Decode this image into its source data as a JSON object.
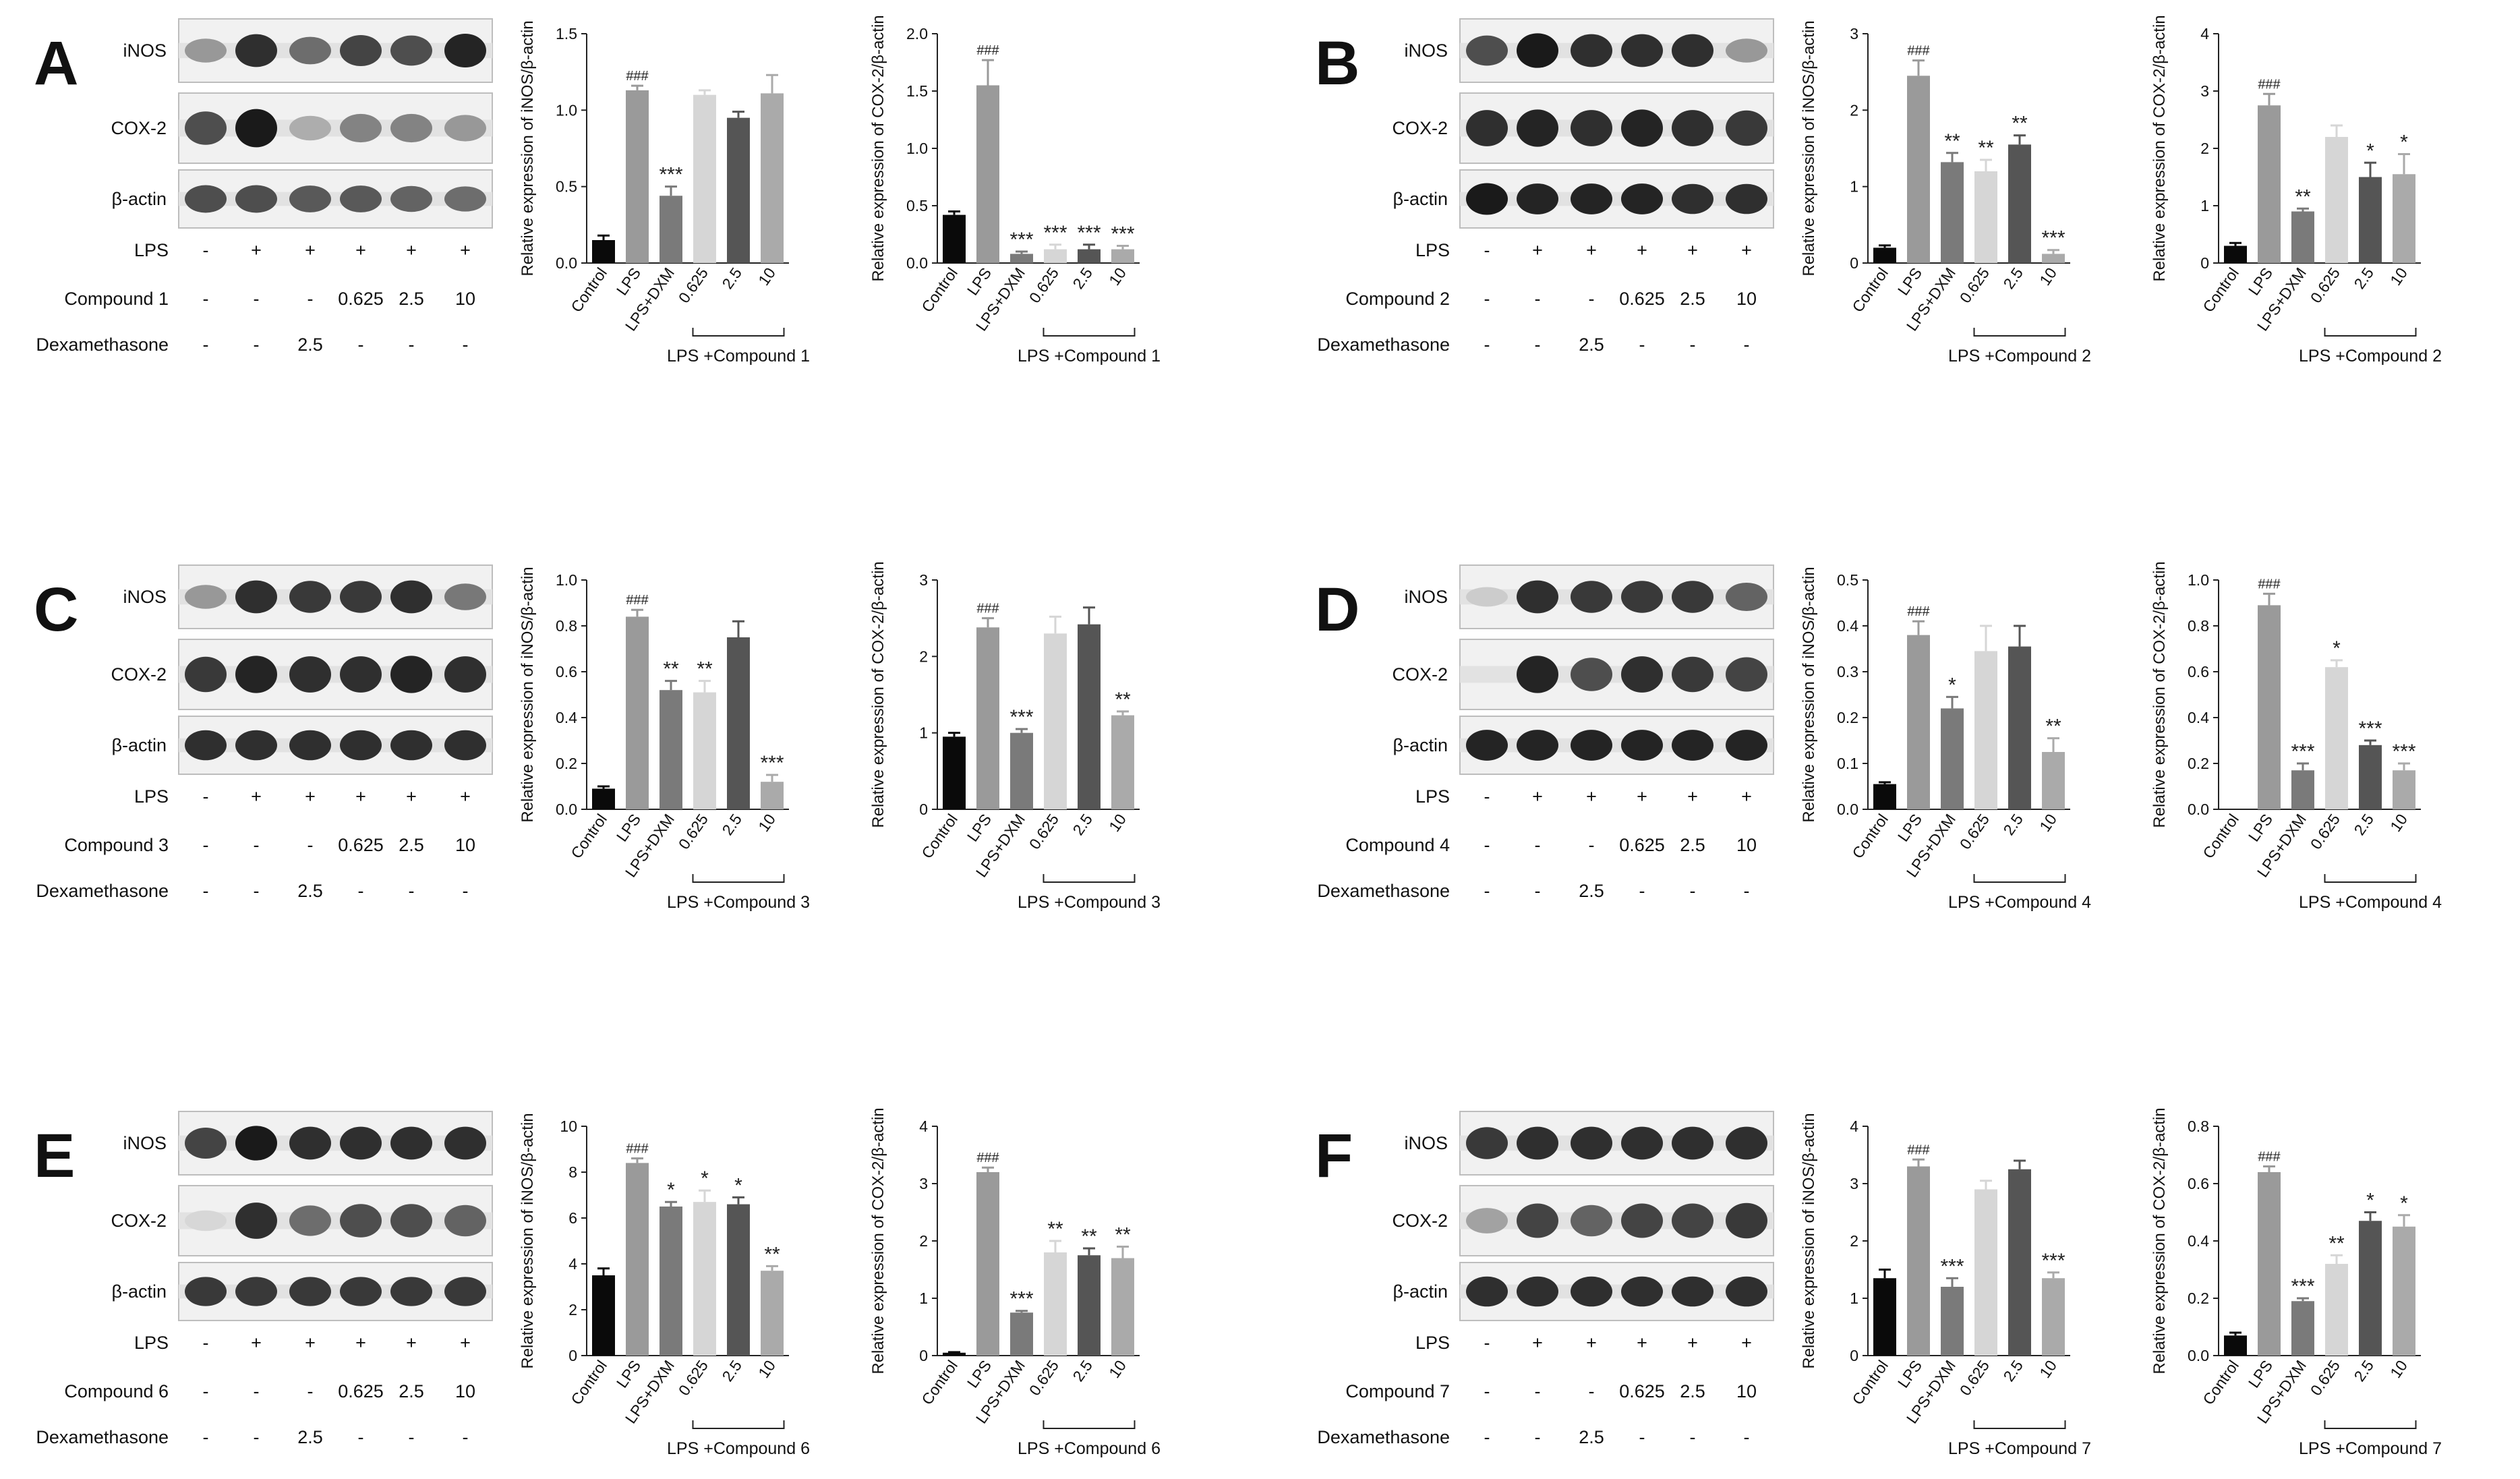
{
  "figure": {
    "row_labels": {
      "lps": "LPS",
      "dex": "Dexamethasone"
    },
    "blot_labels": [
      "iNOS",
      "COX-2",
      "β-actin"
    ],
    "categories": [
      "Control",
      "LPS",
      "LPS+DXM",
      "0.625",
      "2.5",
      "10"
    ],
    "group_prefix": "LPS +",
    "lps_row": [
      "-",
      "+",
      "+",
      "+",
      "+",
      "+"
    ],
    "compound_row": [
      "-",
      "-",
      "-",
      "0.625",
      "2.5",
      "10"
    ],
    "dex_row": [
      "-",
      "-",
      "2.5",
      "-",
      "-",
      "-"
    ],
    "bar_colors": [
      "#0a0a0a",
      "#9a9a9a",
      "#7a7a7a",
      "#d6d6d6",
      "#555555",
      "#aaaaaa"
    ]
  },
  "panels": [
    {
      "letter": "A",
      "compound": "Compound 1",
      "blots": [
        [
          0.35,
          0.85,
          0.55,
          0.75,
          0.7,
          0.9
        ],
        [
          0.7,
          0.95,
          0.25,
          0.45,
          0.45,
          0.35
        ],
        [
          0.7,
          0.7,
          0.65,
          0.65,
          0.6,
          0.55
        ]
      ]
    },
    {
      "letter": "B",
      "compound": "Compound 2",
      "blots": [
        [
          0.7,
          0.95,
          0.85,
          0.85,
          0.85,
          0.35
        ],
        [
          0.85,
          0.9,
          0.85,
          0.9,
          0.85,
          0.8
        ],
        [
          0.95,
          0.9,
          0.9,
          0.9,
          0.85,
          0.85
        ]
      ]
    },
    {
      "letter": "C",
      "compound": "Compound 3",
      "blots": [
        [
          0.35,
          0.85,
          0.8,
          0.8,
          0.85,
          0.5
        ],
        [
          0.8,
          0.9,
          0.85,
          0.85,
          0.9,
          0.85
        ],
        [
          0.85,
          0.85,
          0.85,
          0.85,
          0.85,
          0.85
        ]
      ]
    },
    {
      "letter": "D",
      "compound": "Compound 4",
      "blots": [
        [
          0.1,
          0.85,
          0.8,
          0.8,
          0.8,
          0.6
        ],
        [
          0.0,
          0.9,
          0.7,
          0.85,
          0.8,
          0.75
        ],
        [
          0.9,
          0.9,
          0.9,
          0.9,
          0.9,
          0.9
        ]
      ]
    },
    {
      "letter": "E",
      "compound": "Compound 6",
      "blots": [
        [
          0.75,
          0.95,
          0.85,
          0.85,
          0.85,
          0.85
        ],
        [
          0.05,
          0.85,
          0.55,
          0.7,
          0.7,
          0.6
        ],
        [
          0.8,
          0.8,
          0.8,
          0.8,
          0.8,
          0.8
        ]
      ]
    },
    {
      "letter": "F",
      "compound": "Compound 7",
      "blots": [
        [
          0.8,
          0.85,
          0.85,
          0.85,
          0.85,
          0.85
        ],
        [
          0.3,
          0.75,
          0.6,
          0.75,
          0.75,
          0.8
        ],
        [
          0.85,
          0.85,
          0.85,
          0.85,
          0.85,
          0.85
        ]
      ]
    }
  ],
  "chart_data": [
    {
      "panel": "A",
      "type": "bar",
      "ylabel": "Relative expression of iNOS/β-actin",
      "group_label": "LPS +Compound 1",
      "ylim": [
        0,
        1.5
      ],
      "yticks": [
        "0.0",
        "0.5",
        "1.0",
        "1.5"
      ],
      "values": [
        0.15,
        1.13,
        0.44,
        1.1,
        0.95,
        1.11
      ],
      "errors": [
        0.03,
        0.03,
        0.06,
        0.03,
        0.04,
        0.12
      ],
      "marks": [
        "",
        "###",
        "***",
        "",
        "",
        ""
      ]
    },
    {
      "panel": "A",
      "type": "bar",
      "ylabel": "Relative expression of COX-2/β-actin",
      "group_label": "LPS +Compound 1",
      "ylim": [
        0,
        2.0
      ],
      "yticks": [
        "0.0",
        "0.5",
        "1.0",
        "1.5",
        "2.0"
      ],
      "values": [
        0.42,
        1.55,
        0.08,
        0.12,
        0.12,
        0.12
      ],
      "errors": [
        0.03,
        0.22,
        0.02,
        0.04,
        0.04,
        0.03
      ],
      "marks": [
        "",
        "###",
        "***",
        "***",
        "***",
        "***"
      ]
    },
    {
      "panel": "B",
      "type": "bar",
      "ylabel": "Relative expression of iNOS/β-actin",
      "group_label": "LPS +Compound 2",
      "ylim": [
        0,
        3
      ],
      "yticks": [
        "0",
        "1",
        "2",
        "3"
      ],
      "values": [
        0.2,
        2.45,
        1.32,
        1.2,
        1.55,
        0.12
      ],
      "errors": [
        0.03,
        0.2,
        0.12,
        0.15,
        0.12,
        0.05
      ],
      "marks": [
        "",
        "###",
        "**",
        "**",
        "**",
        "***"
      ]
    },
    {
      "panel": "B",
      "type": "bar",
      "ylabel": "Relative expression of COX-2/β-actin",
      "group_label": "LPS +Compound 2",
      "ylim": [
        0,
        4
      ],
      "yticks": [
        "0",
        "1",
        "2",
        "3",
        "4"
      ],
      "values": [
        0.3,
        2.75,
        0.9,
        2.2,
        1.5,
        1.55
      ],
      "errors": [
        0.05,
        0.2,
        0.05,
        0.2,
        0.25,
        0.35
      ],
      "marks": [
        "",
        "###",
        "**",
        "",
        "*",
        "*"
      ]
    },
    {
      "panel": "C",
      "type": "bar",
      "ylabel": "Relative expression of iNOS/β-actin",
      "group_label": "LPS +Compound 3",
      "ylim": [
        0,
        1.0
      ],
      "yticks": [
        "0.0",
        "0.2",
        "0.4",
        "0.6",
        "0.8",
        "1.0"
      ],
      "values": [
        0.09,
        0.84,
        0.52,
        0.51,
        0.75,
        0.12
      ],
      "errors": [
        0.01,
        0.03,
        0.04,
        0.05,
        0.07,
        0.03
      ],
      "marks": [
        "",
        "###",
        "**",
        "**",
        "",
        "***"
      ]
    },
    {
      "panel": "C",
      "type": "bar",
      "ylabel": "Relative expression of COX-2/β-actin",
      "group_label": "LPS +Compound 3",
      "ylim": [
        0,
        3
      ],
      "yticks": [
        "0",
        "1",
        "2",
        "3"
      ],
      "values": [
        0.95,
        2.38,
        1.0,
        2.3,
        2.42,
        1.23
      ],
      "errors": [
        0.05,
        0.12,
        0.05,
        0.22,
        0.22,
        0.05
      ],
      "marks": [
        "",
        "###",
        "***",
        "",
        "",
        "**"
      ]
    },
    {
      "panel": "D",
      "type": "bar",
      "ylabel": "Relative expression of iNOS/β-actin",
      "group_label": "LPS +Compound 4",
      "ylim": [
        0,
        0.5
      ],
      "yticks": [
        "0.0",
        "0.1",
        "0.2",
        "0.3",
        "0.4",
        "0.5"
      ],
      "values": [
        0.055,
        0.38,
        0.22,
        0.345,
        0.355,
        0.125
      ],
      "errors": [
        0.004,
        0.03,
        0.025,
        0.055,
        0.045,
        0.03
      ],
      "marks": [
        "",
        "###",
        "*",
        "",
        "",
        "**"
      ]
    },
    {
      "panel": "D",
      "type": "bar",
      "ylabel": "Relative expression of COX-2/β-actin",
      "group_label": "LPS +Compound 4",
      "ylim": [
        0,
        1.0
      ],
      "yticks": [
        "0.0",
        "0.2",
        "0.4",
        "0.6",
        "0.8",
        "1.0"
      ],
      "values": [
        0.0,
        0.89,
        0.17,
        0.62,
        0.28,
        0.17
      ],
      "errors": [
        0.0,
        0.05,
        0.03,
        0.03,
        0.02,
        0.03
      ],
      "marks": [
        "",
        "###",
        "***",
        "*",
        "***",
        "***"
      ]
    },
    {
      "panel": "E",
      "type": "bar",
      "ylabel": "Relative expression of iNOS/β-actin",
      "group_label": "LPS +Compound 6",
      "ylim": [
        0,
        10
      ],
      "yticks": [
        "0",
        "2",
        "4",
        "6",
        "8",
        "10"
      ],
      "values": [
        3.5,
        8.4,
        6.5,
        6.7,
        6.6,
        3.7
      ],
      "errors": [
        0.3,
        0.2,
        0.2,
        0.5,
        0.3,
        0.2
      ],
      "marks": [
        "",
        "###",
        "*",
        "*",
        "*",
        "**"
      ]
    },
    {
      "panel": "E",
      "type": "bar",
      "ylabel": "Relative expression of COX-2/β-actin",
      "group_label": "LPS +Compound 6",
      "ylim": [
        0,
        4
      ],
      "yticks": [
        "0",
        "1",
        "2",
        "3",
        "4"
      ],
      "values": [
        0.05,
        3.2,
        0.75,
        1.8,
        1.75,
        1.7
      ],
      "errors": [
        0.01,
        0.08,
        0.03,
        0.2,
        0.12,
        0.2
      ],
      "marks": [
        "",
        "###",
        "***",
        "**",
        "**",
        "**"
      ]
    },
    {
      "panel": "F",
      "type": "bar",
      "ylabel": "Relative expression of iNOS/β-actin",
      "group_label": "LPS +Compound 7",
      "ylim": [
        0,
        4
      ],
      "yticks": [
        "0",
        "1",
        "2",
        "3",
        "4"
      ],
      "values": [
        1.35,
        3.3,
        1.2,
        2.9,
        3.25,
        1.35
      ],
      "errors": [
        0.15,
        0.12,
        0.15,
        0.15,
        0.15,
        0.1
      ],
      "marks": [
        "",
        "###",
        "***",
        "",
        "",
        "***"
      ]
    },
    {
      "panel": "F",
      "type": "bar",
      "ylabel": "Relative expression of COX-2/β-actin",
      "group_label": "LPS +Compound 7",
      "ylim": [
        0,
        0.8
      ],
      "yticks": [
        "0.0",
        "0.2",
        "0.4",
        "0.6",
        "0.8"
      ],
      "values": [
        0.07,
        0.64,
        0.19,
        0.32,
        0.47,
        0.45
      ],
      "errors": [
        0.01,
        0.02,
        0.01,
        0.03,
        0.03,
        0.04
      ],
      "marks": [
        "",
        "###",
        "***",
        "**",
        "*",
        "*"
      ]
    }
  ]
}
